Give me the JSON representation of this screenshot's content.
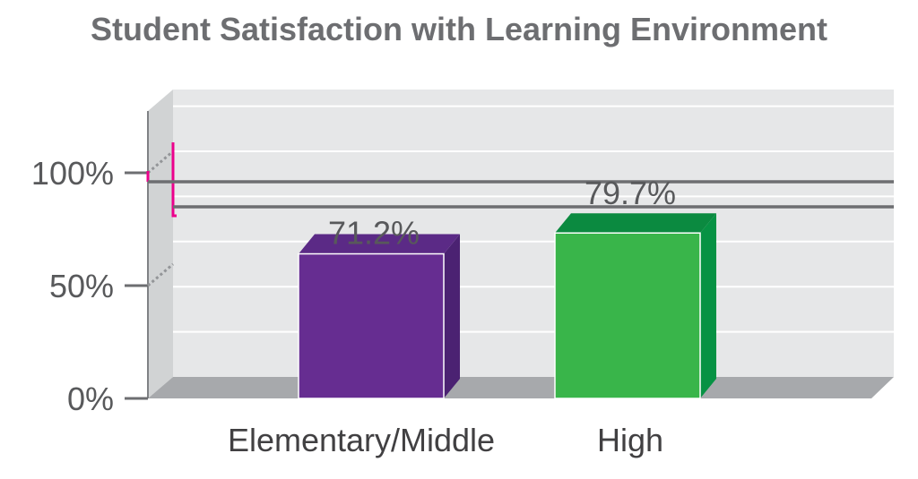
{
  "chart_data": {
    "type": "bar",
    "title": "Student Satisfaction with Learning Environment",
    "categories": [
      "Elementary/Middle",
      "High"
    ],
    "series": [
      {
        "values": [
          71.2,
          79.7
        ],
        "data_labels": [
          "71.2%",
          "79.7%"
        ]
      }
    ],
    "y_ticks": [
      0,
      50,
      100
    ],
    "y_tick_labels": [
      "0%",
      "50%",
      "100%"
    ],
    "ylim": [
      0,
      120
    ],
    "grid": true,
    "legend": "none",
    "colors": {
      "Elementary/Middle": {
        "front": "#662d91",
        "top": "#5b2a86",
        "side": "#4b2272"
      },
      "High": {
        "front": "#39b54a",
        "top": "#0b8a40",
        "side": "#079244"
      },
      "wall": "#e6e7e8",
      "wall_side": "#d1d3d4",
      "floor": "#a7a9ac",
      "gridline": "#ffffff",
      "reference_line": "#6d6e71",
      "axis_break": "#ec008c"
    },
    "axis_break": true
  }
}
